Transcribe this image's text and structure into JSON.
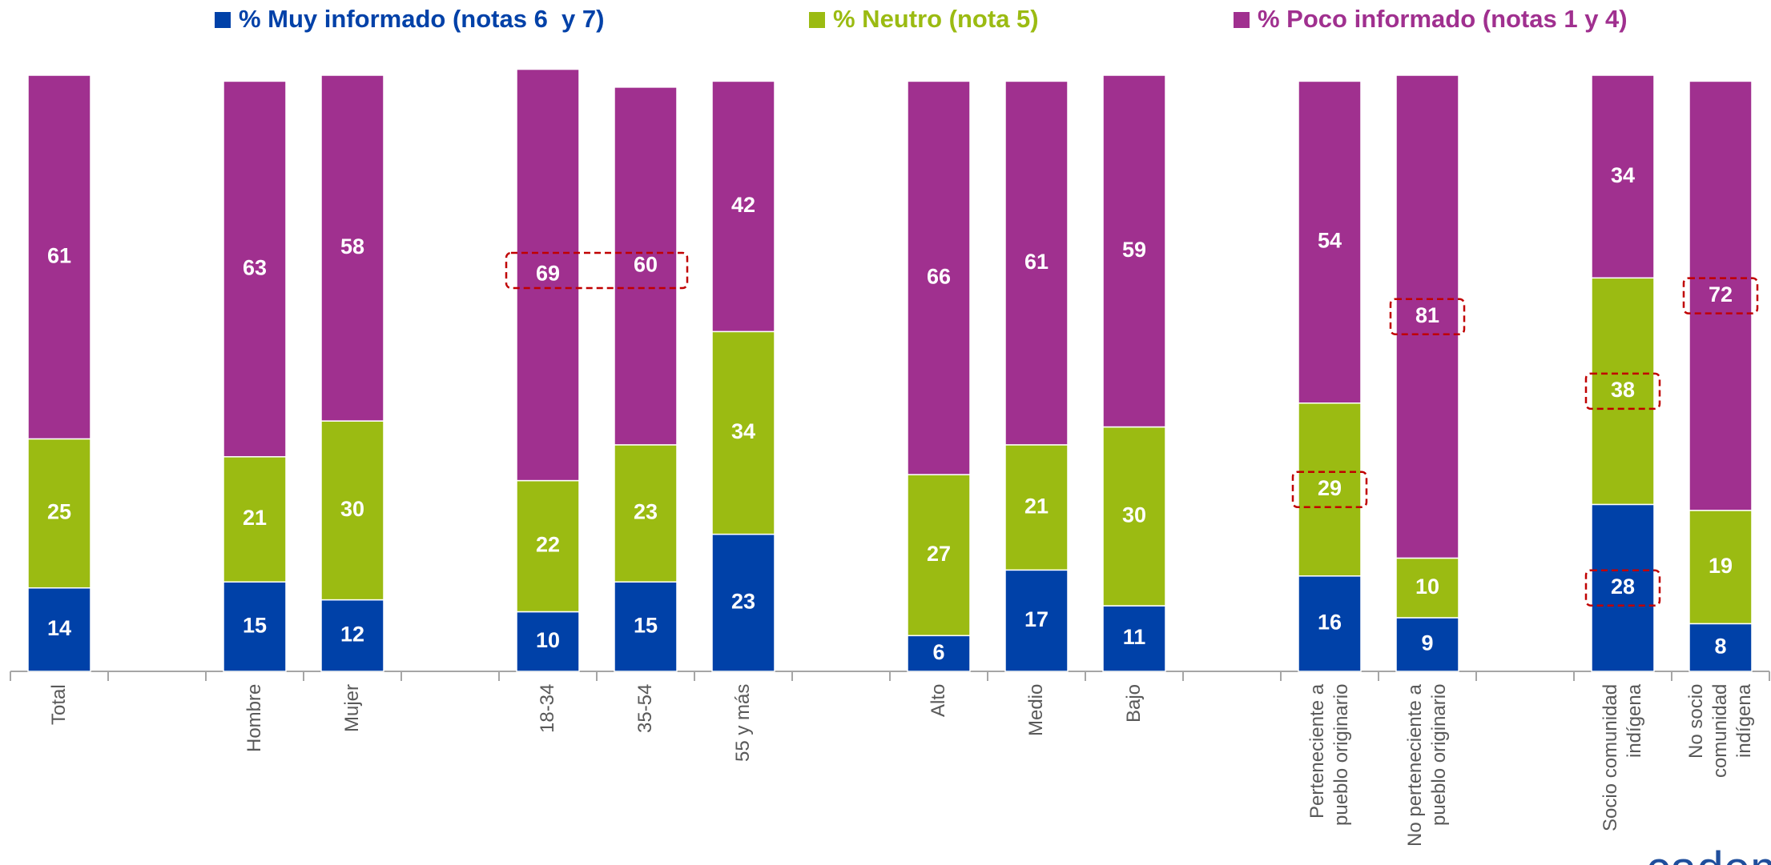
{
  "chart_data": {
    "type": "stacked_bar",
    "categories": [
      "Total",
      null,
      "Hombre",
      "Mujer",
      null,
      "18-34",
      "35-54",
      "55 y más",
      null,
      "Alto",
      "Medio",
      "Bajo",
      null,
      "Perteneciente a\npueblo originario",
      "No perteneciente a\npueblo originario",
      null,
      "Socio comunidad\nindígena",
      "No socio\ncomunidad\nindígena"
    ],
    "series": [
      {
        "name": "% Muy informado (notas 6  y 7)",
        "color": "#0041a8",
        "values": [
          14,
          null,
          15,
          12,
          null,
          10,
          15,
          23,
          null,
          6,
          17,
          11,
          null,
          16,
          9,
          null,
          28,
          8
        ]
      },
      {
        "name": "% Neutro (nota 5)",
        "color": "#9bbb12",
        "values": [
          25,
          null,
          21,
          30,
          null,
          22,
          23,
          34,
          null,
          27,
          21,
          30,
          null,
          29,
          10,
          null,
          38,
          19
        ]
      },
      {
        "name": "% Poco informado (notas 1 y 4)",
        "color": "#a0308f",
        "values": [
          61,
          null,
          63,
          58,
          null,
          69,
          60,
          42,
          null,
          66,
          61,
          59,
          null,
          54,
          81,
          null,
          34,
          72
        ]
      }
    ],
    "ylim": [
      0,
      100
    ],
    "legend": "top",
    "logo": "cadem"
  }
}
